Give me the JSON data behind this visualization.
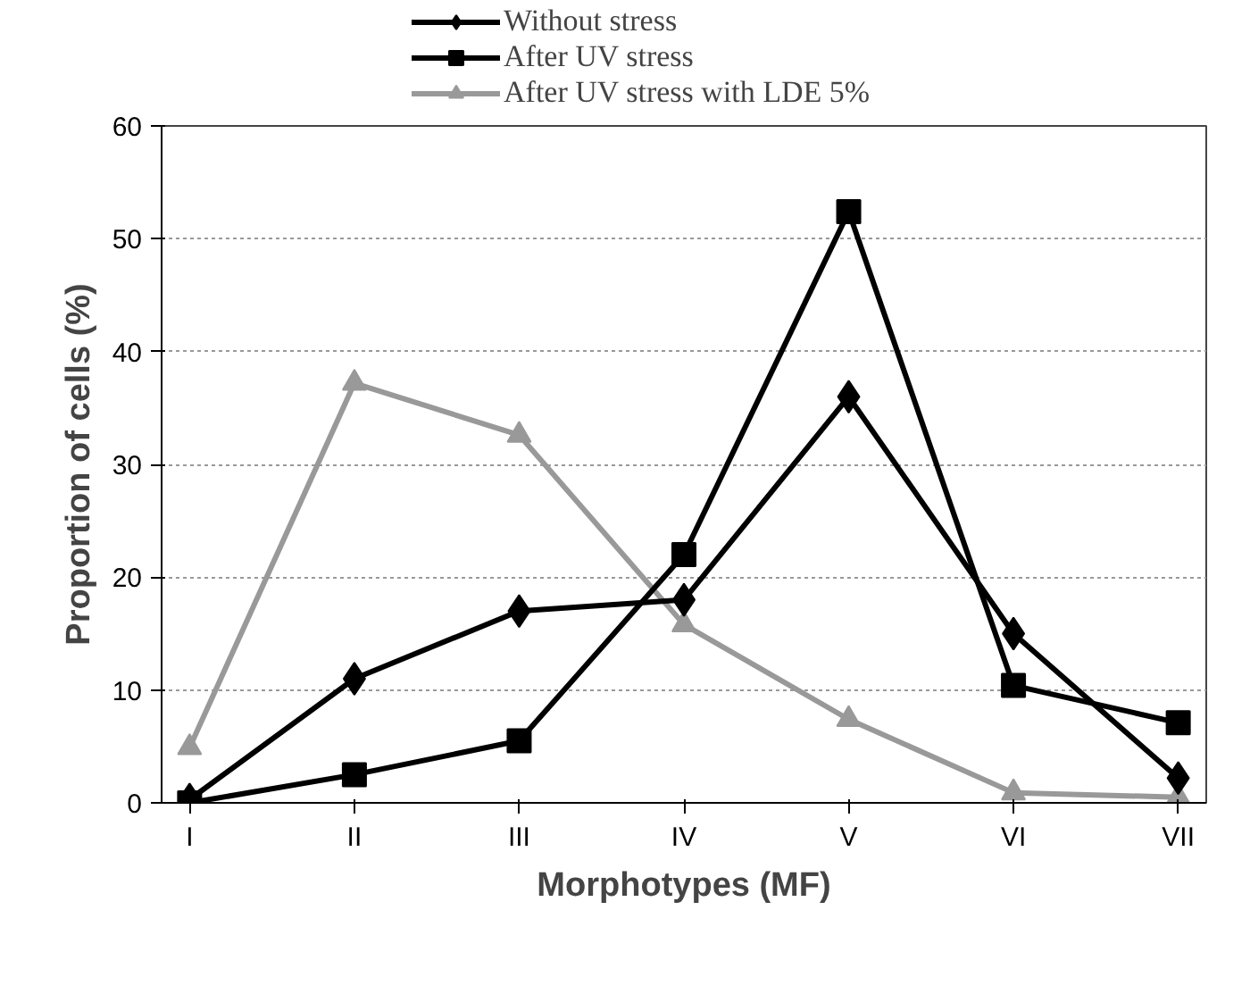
{
  "chart_data": {
    "type": "line",
    "xlabel": "Morphotypes (MF)",
    "ylabel": "Proportion of cells (%)",
    "categories": [
      "I",
      "II",
      "III",
      "IV",
      "V",
      "VI",
      "VII"
    ],
    "series": [
      {
        "name": "Without stress",
        "color": "#000000",
        "marker": "diamond",
        "values": [
          0.3,
          11,
          17,
          18,
          36,
          15,
          2.2
        ]
      },
      {
        "name": "After UV stress",
        "color": "#000000",
        "marker": "square",
        "values": [
          0,
          2.5,
          5.5,
          22,
          52.4,
          10.4,
          7.1
        ]
      },
      {
        "name": "After UV stress with LDE 5%",
        "color": "#999999",
        "marker": "triangle",
        "values": [
          4.9,
          37.2,
          32.6,
          15.8,
          7.4,
          0.9,
          0.5
        ]
      }
    ],
    "ylim": [
      0,
      60
    ],
    "yticks": [
      0,
      10,
      20,
      30,
      40,
      50,
      60
    ],
    "grid": "y",
    "legend": "top",
    "line_style": "solid"
  }
}
